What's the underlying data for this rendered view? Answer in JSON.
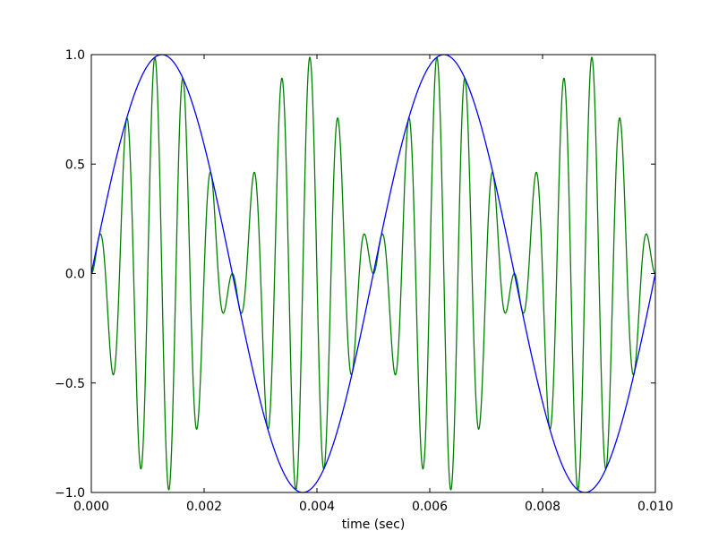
{
  "chart_data": {
    "type": "line",
    "title": "",
    "xlabel": "time (sec)",
    "ylabel": "",
    "xlim": [
      0.0,
      0.01
    ],
    "ylim": [
      -1.0,
      1.0
    ],
    "xticks": [
      0.0,
      0.002,
      0.004,
      0.006,
      0.008,
      0.01
    ],
    "xtick_labels": [
      "0.000",
      "0.002",
      "0.004",
      "0.006",
      "0.008",
      "0.010"
    ],
    "yticks": [
      -1.0,
      -0.5,
      0.0,
      0.5,
      1.0
    ],
    "ytick_labels": [
      "−1.0",
      "−0.5",
      "0.0",
      "0.5",
      "1.0"
    ],
    "grid": false,
    "legend": "none",
    "series": [
      {
        "color": "#0000ff",
        "form": "sin(2π·200·t)",
        "frequency_hz": 200,
        "amplitude": 1.0
      },
      {
        "color": "#008000",
        "form": "sin(2π·200·t)·sin(2π·2000·t)",
        "envelope_frequency_hz": 200,
        "carrier_frequency_hz": 2000,
        "amplitude": 1.0
      }
    ]
  }
}
